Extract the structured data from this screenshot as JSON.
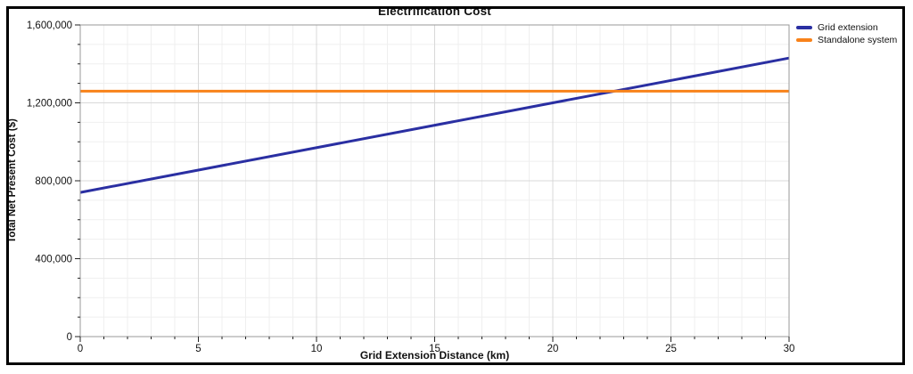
{
  "chart_data": {
    "type": "line",
    "title": "Electrification Cost",
    "xlabel": "Grid Extension Distance (km)",
    "ylabel": "Total Net Present Cost ($)",
    "xlim": [
      0,
      30
    ],
    "ylim": [
      0,
      1600000
    ],
    "x_ticks": [
      0,
      5,
      10,
      15,
      20,
      25,
      30
    ],
    "x_tick_labels": [
      "0",
      "5",
      "10",
      "15",
      "20",
      "25",
      "30"
    ],
    "y_ticks": [
      0,
      400000,
      800000,
      1200000,
      1600000
    ],
    "y_tick_labels": [
      "0",
      "400,000",
      "800,000",
      "1,200,000",
      "1,600,000"
    ],
    "x_minor_step": 1,
    "y_minor_step": 100000,
    "grid": true,
    "legend_position": "outside-top-right",
    "series": [
      {
        "name": "Grid extension",
        "color": "#2a2fa2",
        "x": [
          0,
          30
        ],
        "y": [
          740000,
          1430000
        ]
      },
      {
        "name": "Standalone system",
        "color": "#f8821a",
        "x": [
          0,
          30
        ],
        "y": [
          1260000,
          1260000
        ]
      }
    ]
  },
  "colors": {
    "background": "#ffffff",
    "outer_border": "#000000",
    "plot_frame": "#999999",
    "grid_major": "#d8d8d8",
    "grid_minor": "#efefef",
    "tick_mark": "#222222",
    "tick_label": "#111111"
  }
}
